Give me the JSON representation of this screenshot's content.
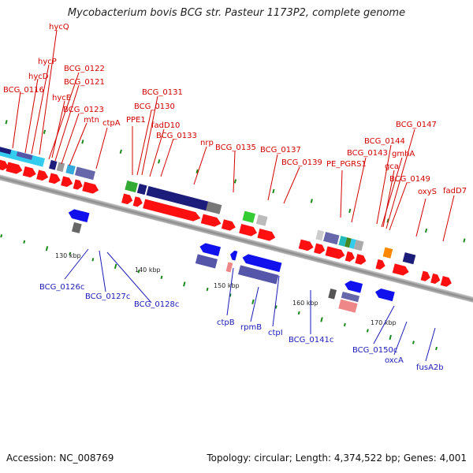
{
  "title": "Mycobacterium bovis BCG str. Pasteur 1173P2, complete genome",
  "footer": {
    "accession": "Accession: NC_008769",
    "summary": "Topology: circular; Length: 4,374,522 bp; Genes: 4,001"
  },
  "colors": {
    "cds": "#ff0000",
    "pseudo_dark": "#1c1c7a",
    "cyan": "#33ccee",
    "lavender": "#6666aa",
    "green": "#33aa33",
    "gray": "#888888",
    "orange": "#ff8800",
    "blue": "#1111ee",
    "pink": "#ee8888"
  },
  "genome_labels": {
    "forward": [
      "hycQ",
      "hycP",
      "hycD",
      "BCG_0116",
      "BCG_0122",
      "BCG_0121",
      "hycE",
      "BCG_0123",
      "mtn",
      "ctpA",
      "BCG_0131",
      "BCG_0130",
      "PPE1",
      "fadD10",
      "BCG_0133",
      "nrp",
      "BCG_0135",
      "BCG_0137",
      "BCG_0139",
      "PE_PGRS1",
      "BCG_0143",
      "BCG_0144",
      "BCG_0147",
      "gmhA",
      "gca",
      "BCG_0149",
      "oxyS",
      "fadD7"
    ],
    "reverse": [
      "BCG_0126c",
      "BCG_0127c",
      "BCG_0128c",
      "ctpB",
      "rpmB",
      "ctpI",
      "BCG_0141c",
      "BCG_0150c",
      "oxcA",
      "fusA2b"
    ]
  },
  "scale_labels": [
    "130 kbp",
    "140 kbp",
    "150 kbp",
    "160 kbp",
    "170 kbp"
  ]
}
